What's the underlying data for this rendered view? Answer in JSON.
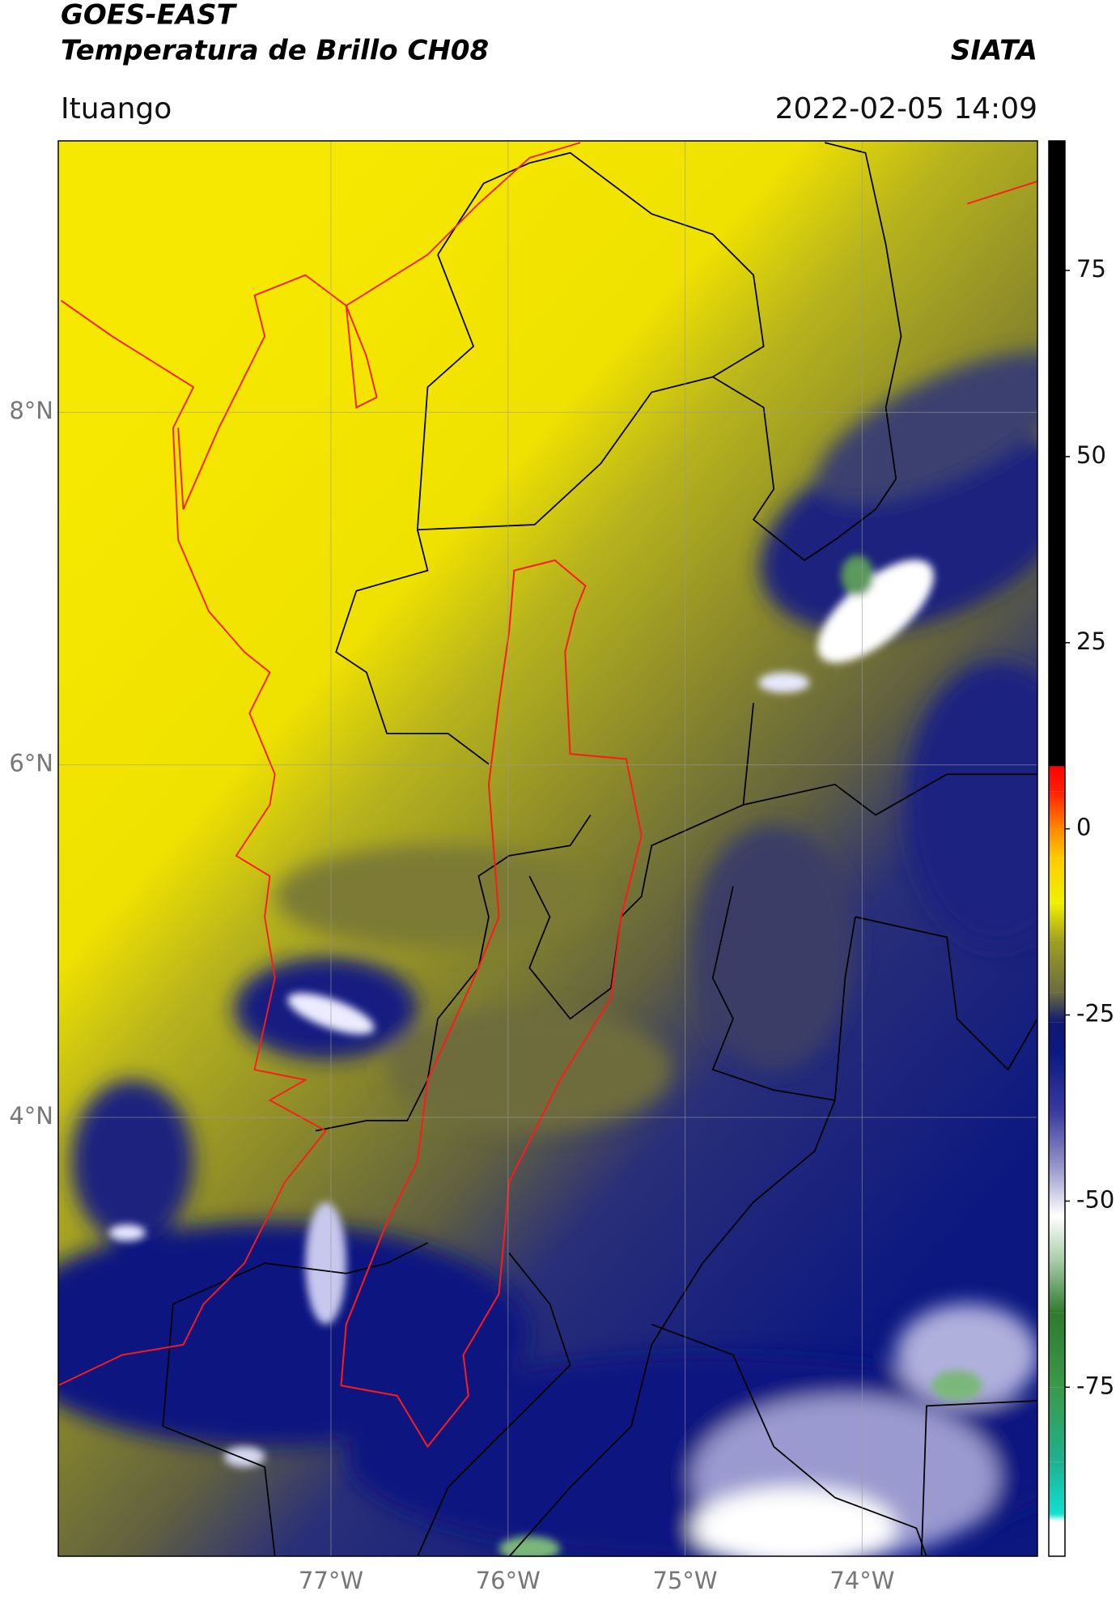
{
  "header": {
    "title": "GOES-EAST",
    "subtitle": "Temperatura de Brillo CH08",
    "source": "SIATA",
    "region": "Ituango",
    "datetime": "2022-02-05 14:09"
  },
  "map": {
    "xlim": [
      -78.54,
      -73.01
    ],
    "ylim": [
      1.51,
      9.54
    ],
    "xticks": [
      {
        "value": -77,
        "label": "77°W"
      },
      {
        "value": -76,
        "label": "76°W"
      },
      {
        "value": -75,
        "label": "75°W"
      },
      {
        "value": -74,
        "label": "74°W"
      }
    ],
    "yticks": [
      {
        "value": 8,
        "label": "8°N"
      },
      {
        "value": 6,
        "label": "6°N"
      },
      {
        "value": 4,
        "label": "4°N"
      }
    ],
    "grid": true
  },
  "colorbar": {
    "range": [
      -97.7,
      92.4
    ],
    "ticks": [
      -75,
      -50,
      -25,
      0,
      25,
      50,
      75
    ],
    "stops": [
      {
        "value": -97.7,
        "color": "#ffffff"
      },
      {
        "value": -93,
        "color": "#ffffff"
      },
      {
        "value": -92,
        "color": "#10e0d0"
      },
      {
        "value": -85,
        "color": "#20b090"
      },
      {
        "value": -75,
        "color": "#3a9a4a"
      },
      {
        "value": -65,
        "color": "#2f7a2f"
      },
      {
        "value": -58,
        "color": "#a8cca8"
      },
      {
        "value": -52,
        "color": "#ffffff"
      },
      {
        "value": -45,
        "color": "#9090c8"
      },
      {
        "value": -38,
        "color": "#3a3aa0"
      },
      {
        "value": -30,
        "color": "#0a1a80"
      },
      {
        "value": -26,
        "color": "#101870"
      },
      {
        "value": -22,
        "color": "#6b6b40"
      },
      {
        "value": -15,
        "color": "#a0a020"
      },
      {
        "value": -10,
        "color": "#f0f000"
      },
      {
        "value": -4,
        "color": "#ffcc00"
      },
      {
        "value": 0,
        "color": "#ff8800"
      },
      {
        "value": 5,
        "color": "#ff2000"
      },
      {
        "value": 8.4,
        "color": "#ff0000"
      },
      {
        "value": 8.4,
        "color": "#000000"
      },
      {
        "value": 92.4,
        "color": "#000000"
      }
    ]
  }
}
